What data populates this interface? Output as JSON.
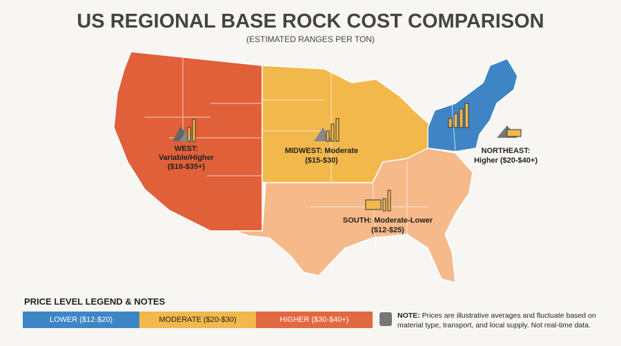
{
  "header": {
    "title": "US REGIONAL BASE ROCK COST COMPARISON",
    "subtitle": "(ESTIMATED RANGES PER TON)"
  },
  "regions": [
    {
      "lines": [
        "WEST:",
        "Variable/Higher",
        "($18-$35+)"
      ]
    },
    {
      "lines": [
        "MIDWEST: Moderate",
        "($15-$30)"
      ]
    },
    {
      "lines": [
        "NORTHEAST:",
        "Higher ($20-$40+)"
      ]
    },
    {
      "lines": [
        "SOUTH: Moderate-Lower",
        "($12-$25)"
      ]
    }
  ],
  "legend": {
    "title": "PRICE LEVEL LEGEND & NOTES",
    "items": [
      "LOWER ($12-$20)",
      "MODERATE ($20-$30)",
      "HIGHER ($30-$40+)"
    ]
  },
  "note": {
    "label": "NOTE:",
    "lines": [
      "Prices are illustrative averages and fluctuate based on",
      "material type, transport, and local supply. Not real-time data."
    ]
  }
}
